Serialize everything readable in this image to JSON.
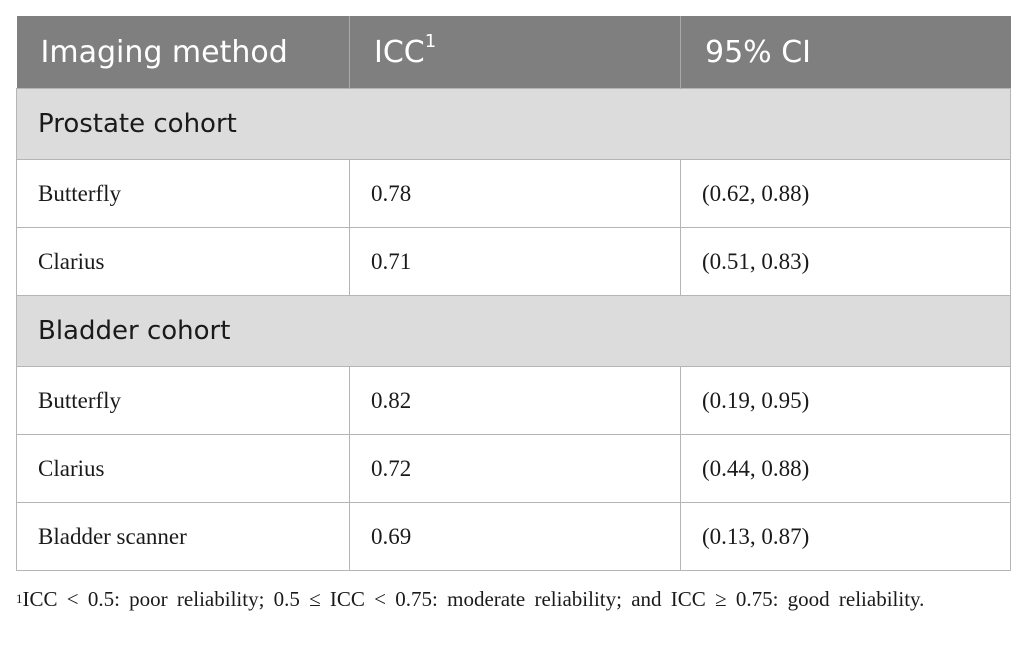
{
  "table": {
    "headers": [
      "Imaging method",
      "ICC",
      "95% CI"
    ],
    "header_superscript": "1",
    "groups": [
      {
        "title": "Prostate cohort",
        "rows": [
          {
            "method": "Butterfly",
            "icc": "0.78",
            "ci": "(0.62, 0.88)"
          },
          {
            "method": "Clarius",
            "icc": "0.71",
            "ci": "(0.51, 0.83)"
          }
        ]
      },
      {
        "title": "Bladder cohort",
        "rows": [
          {
            "method": "Butterfly",
            "icc": "0.82",
            "ci": "(0.19, 0.95)"
          },
          {
            "method": "Clarius",
            "icc": "0.72",
            "ci": "(0.44, 0.88)"
          },
          {
            "method": "Bladder scanner",
            "icc": "0.69",
            "ci": "(0.13, 0.87)"
          }
        ]
      }
    ]
  },
  "footnote": {
    "marker": "1",
    "text": "ICC < 0.5: poor reliability; 0.5 ≤ ICC < 0.75: moderate reliability; and ICC ≥ 0.75: good reliability."
  },
  "colors": {
    "header_bg": "#7f7f7f",
    "group_bg": "#dcdcdc",
    "border": "#b5b5b5"
  }
}
